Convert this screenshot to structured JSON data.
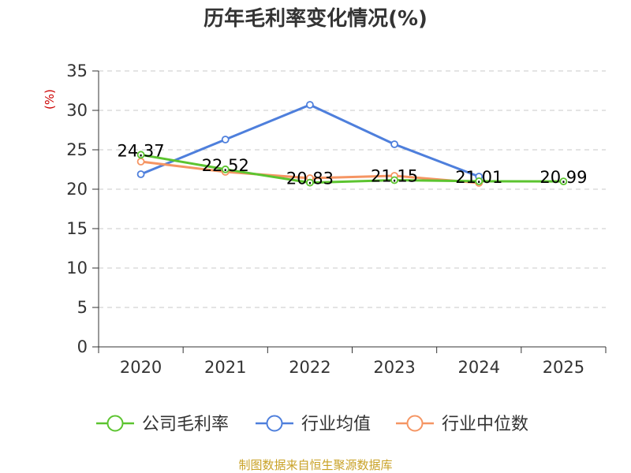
{
  "chart_data": {
    "type": "line",
    "title": "历年毛利率变化情况(%)",
    "ylabel": "(%)",
    "xlabel": "",
    "categories": [
      "2020",
      "2021",
      "2022",
      "2023",
      "2024",
      "2025"
    ],
    "ylim": [
      0,
      35
    ],
    "yticks": [
      0,
      5,
      10,
      15,
      20,
      25,
      30,
      35
    ],
    "grid": true,
    "legend_position": "bottom",
    "series": [
      {
        "name": "公司毛利率",
        "color": "#5cc430",
        "values": [
          24.37,
          22.52,
          20.83,
          21.15,
          21.01,
          20.99
        ],
        "labels": [
          "24.37",
          "22.52",
          "20.83",
          "21.15",
          "21.01",
          "20.99"
        ]
      },
      {
        "name": "行业均值",
        "color": "#4e7fdc",
        "values": [
          21.9,
          26.3,
          30.7,
          25.7,
          21.6,
          null
        ]
      },
      {
        "name": "行业中位数",
        "color": "#f59563",
        "values": [
          23.5,
          22.2,
          21.4,
          21.7,
          20.8,
          null
        ]
      }
    ]
  },
  "source": "制图数据来自恒生聚源数据库"
}
